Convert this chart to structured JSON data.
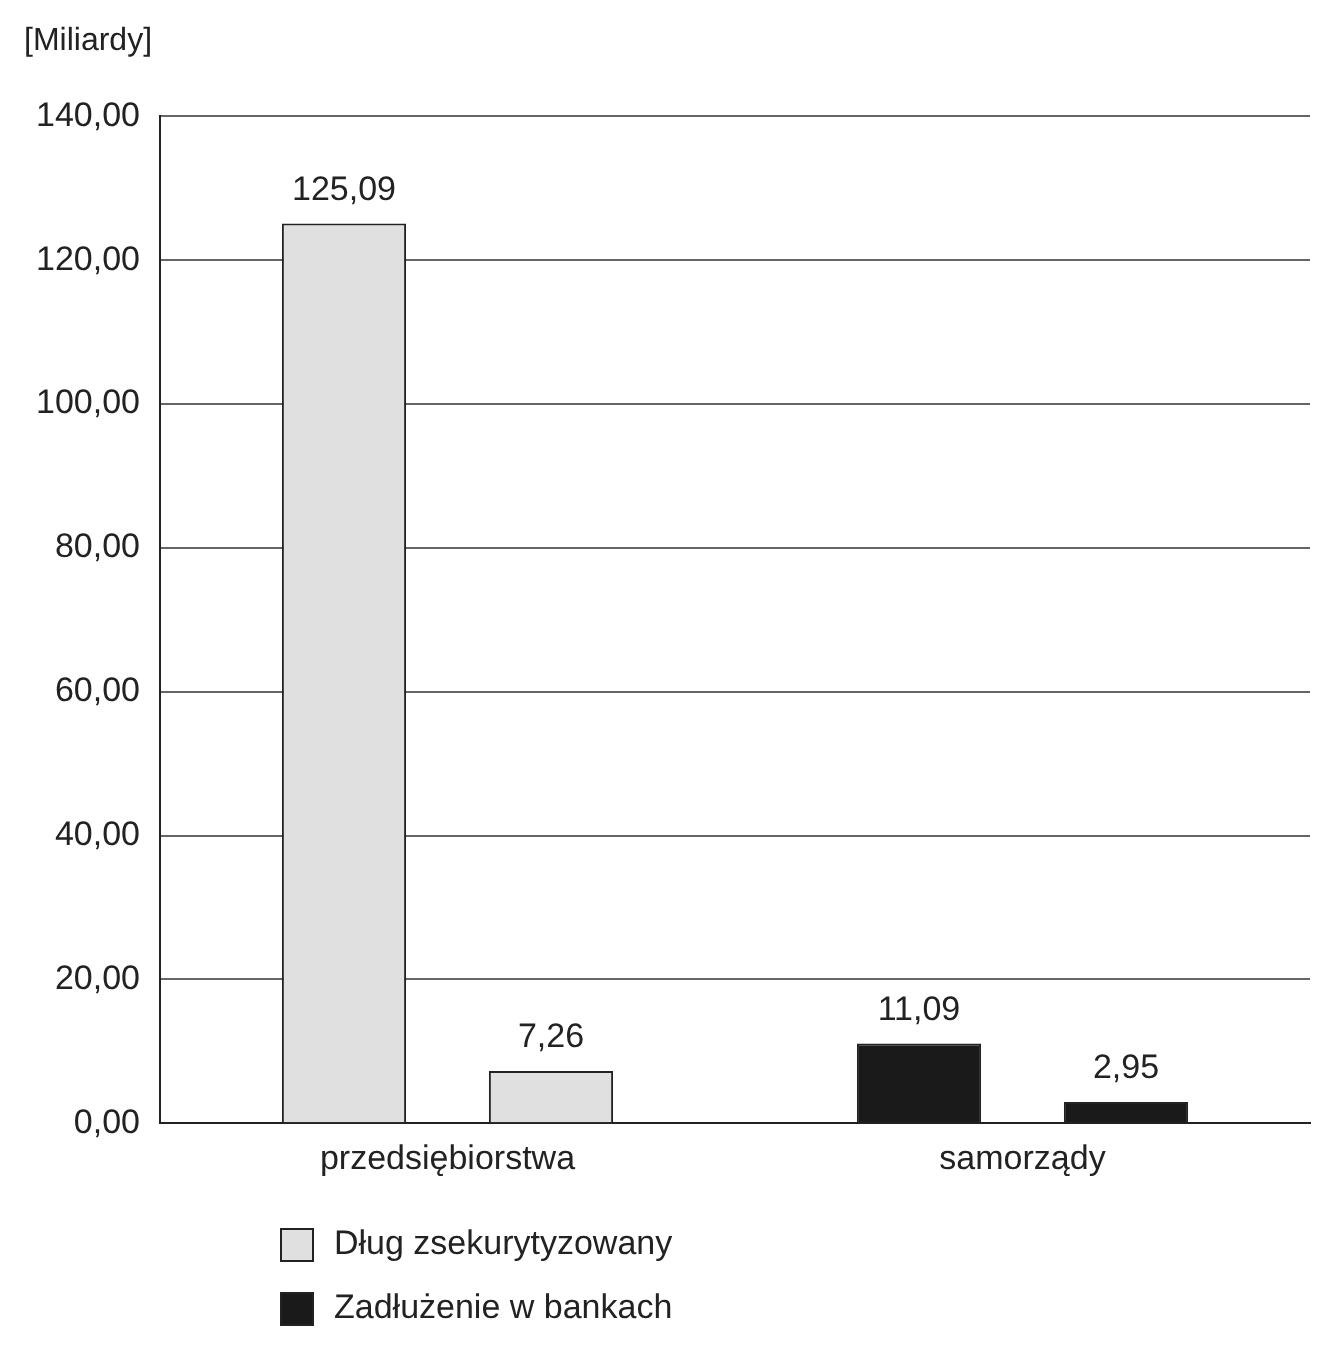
{
  "chart_data": {
    "type": "bar",
    "ylabel": "[Miliardy]",
    "categories": [
      "przedsiębiorstwa",
      "samorządy"
    ],
    "series": [
      {
        "name": "Dług zsekurytyzowany",
        "color": "#e0e0e0",
        "values": [
          125.09,
          null
        ],
        "value_labels": [
          "125,09",
          null
        ]
      },
      {
        "color": "#e0e0e0",
        "values": [
          7.26,
          null
        ],
        "value_labels": [
          "7,26",
          null
        ]
      },
      {
        "name": "Zadłużenie w bankach",
        "color": "#1a1a1a",
        "values": [
          null,
          11.09
        ],
        "value_labels": [
          null,
          "11,09"
        ]
      },
      {
        "color": "#1a1a1a",
        "values": [
          null,
          2.95
        ],
        "value_labels": [
          null,
          "2,95"
        ]
      }
    ],
    "ylim": [
      0,
      140
    ],
    "yticks": [
      {
        "value": 0,
        "label": "0,00"
      },
      {
        "value": 20,
        "label": "20,00"
      },
      {
        "value": 40,
        "label": "40,00"
      },
      {
        "value": 60,
        "label": "60,00"
      },
      {
        "value": 80,
        "label": "80,00"
      },
      {
        "value": 100,
        "label": "100,00"
      },
      {
        "value": 120,
        "label": "120,00"
      },
      {
        "value": 140,
        "label": "140,00"
      }
    ],
    "grid": "y",
    "legend": "bottom left"
  }
}
